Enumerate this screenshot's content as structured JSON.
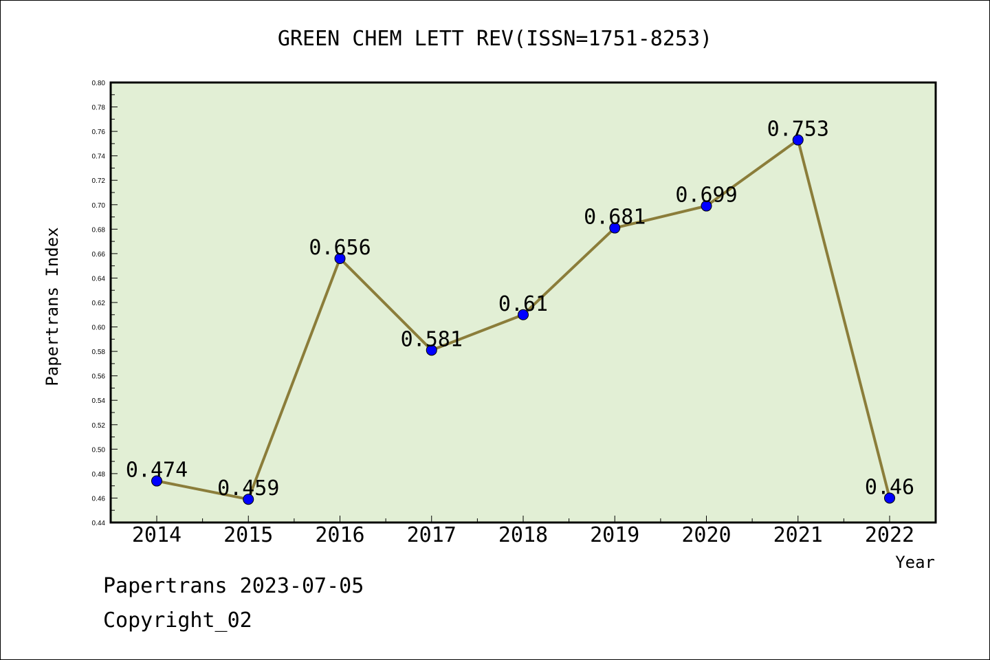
{
  "chart_data": {
    "type": "line",
    "title": "GREEN CHEM LETT REV(ISSN=1751-8253)",
    "xlabel": "Year",
    "ylabel": "Papertrans Index",
    "ylim": [
      0.44,
      0.8
    ],
    "y_ticks": [
      "0.44",
      "0.46",
      "0.48",
      "0.50",
      "0.52",
      "0.54",
      "0.56",
      "0.58",
      "0.60",
      "0.62",
      "0.64",
      "0.66",
      "0.68",
      "0.70",
      "0.72",
      "0.74",
      "0.76",
      "0.78",
      "0.80"
    ],
    "categories": [
      "2014",
      "2015",
      "2016",
      "2017",
      "2018",
      "2019",
      "2020",
      "2021",
      "2022"
    ],
    "series": [
      {
        "values": [
          0.474,
          0.459,
          0.656,
          0.581,
          0.61,
          0.681,
          0.699,
          0.753,
          0.46
        ],
        "labels": [
          "0.474",
          "0.459",
          "0.656",
          "0.581",
          "0.61",
          "0.681",
          "0.699",
          "0.753",
          "0.46"
        ],
        "line_color": "#8B7D3A",
        "marker_color": "#0000FF"
      }
    ],
    "plot_background": "#E2EFD5",
    "grid": false
  },
  "footer": {
    "line1": "Papertrans 2023-07-05",
    "line2": "Copyright_02"
  }
}
